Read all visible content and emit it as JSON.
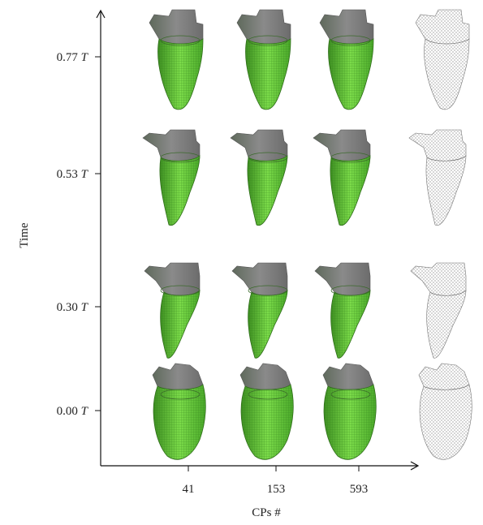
{
  "y_axis": {
    "label": "Time",
    "ticks": [
      {
        "number": "0.77",
        "unit": "T"
      },
      {
        "number": "0.53",
        "unit": "T"
      },
      {
        "number": "0.30",
        "unit": "T"
      },
      {
        "number": "0.00",
        "unit": "T"
      }
    ]
  },
  "x_axis": {
    "label": "CPs #",
    "ticks": [
      "41",
      "153",
      "593"
    ]
  }
}
